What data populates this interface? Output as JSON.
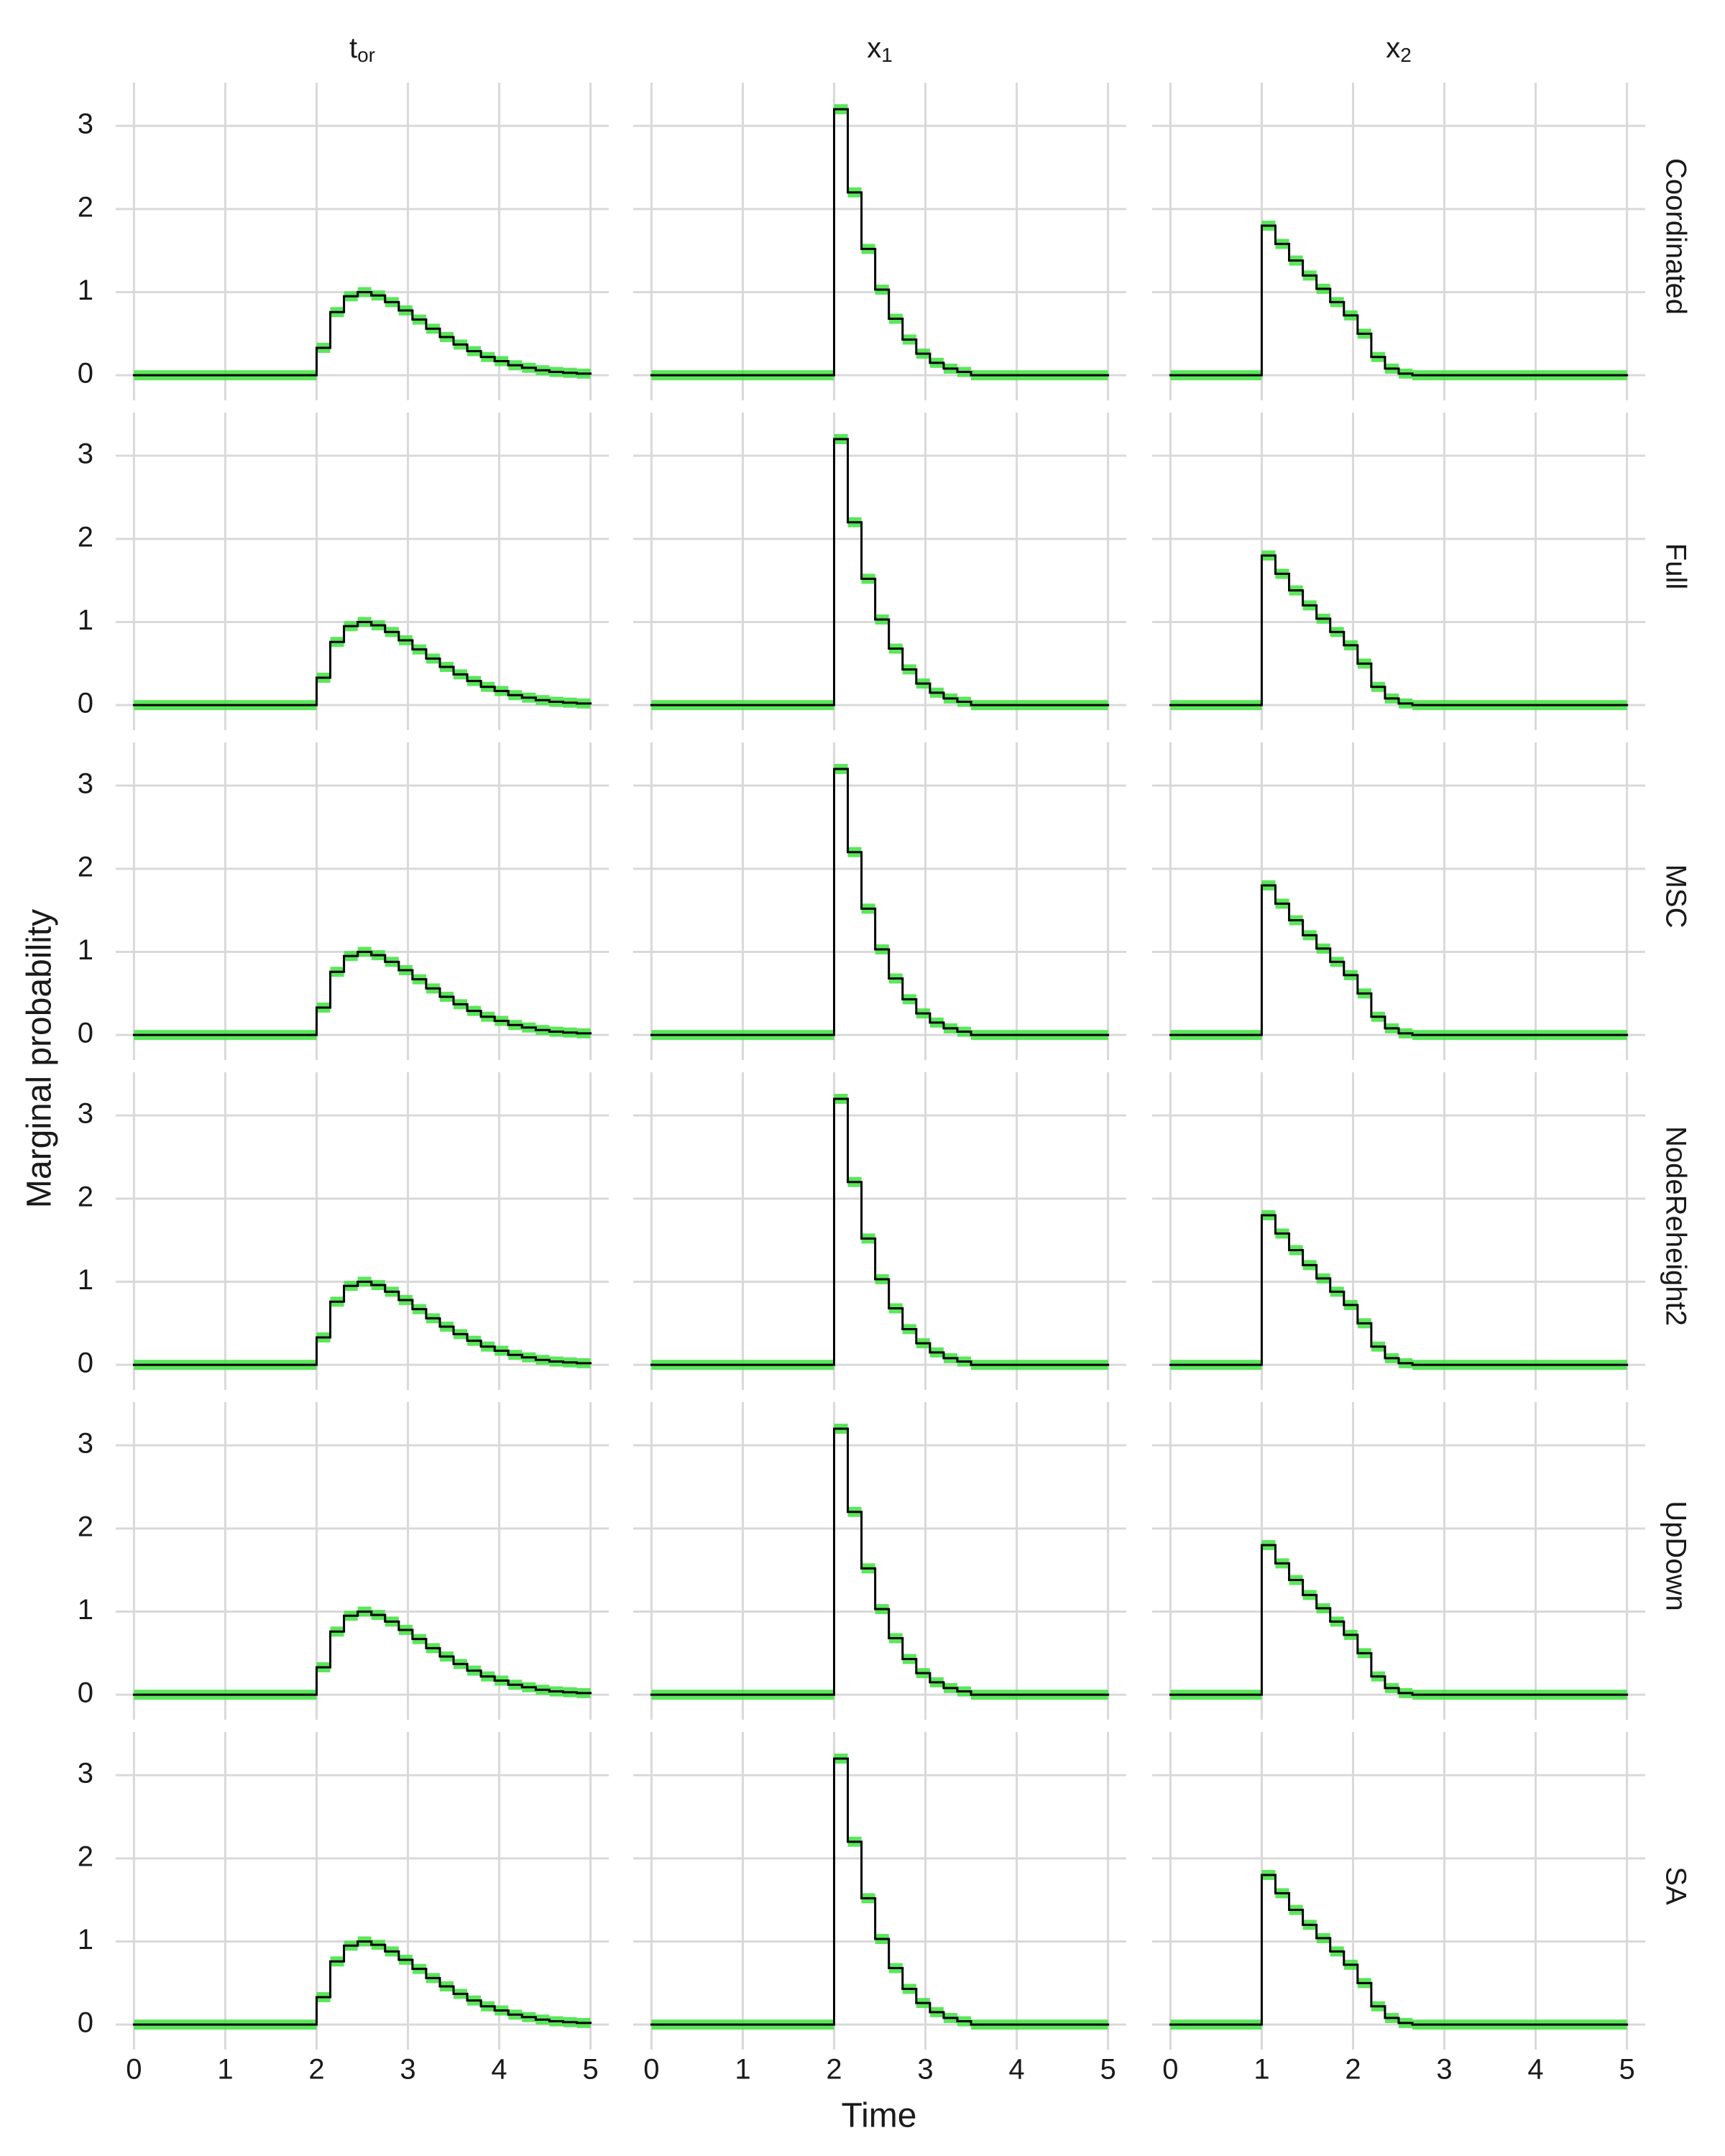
{
  "chart_data": {
    "type": "step",
    "x_label": "Time",
    "y_label": "Marginal probability",
    "columns": [
      {
        "title": "t",
        "subscript": "or",
        "bins": [
          0,
          2,
          2.15,
          2.3,
          2.45,
          2.6,
          2.75,
          2.9,
          3.05,
          3.2,
          3.35,
          3.5,
          3.65,
          3.8,
          3.95,
          4.1,
          4.25,
          4.4,
          4.55,
          4.7,
          4.85,
          5
        ]
      },
      {
        "title": "x",
        "subscript": "1",
        "bins": [
          0,
          2,
          2.15,
          2.3,
          2.45,
          2.6,
          2.75,
          2.9,
          3.05,
          3.2,
          3.35,
          3.5,
          5
        ]
      },
      {
        "title": "x",
        "subscript": "2",
        "bins": [
          0,
          1,
          1.15,
          1.3,
          1.45,
          1.6,
          1.75,
          1.9,
          2.05,
          2.2,
          2.35,
          2.5,
          2.65,
          5
        ]
      }
    ],
    "rows": [
      {
        "label": "Coordinated",
        "values": [
          [
            0,
            0.33,
            0.76,
            0.95,
            1.0,
            0.96,
            0.88,
            0.78,
            0.67,
            0.56,
            0.46,
            0.37,
            0.29,
            0.22,
            0.17,
            0.12,
            0.09,
            0.06,
            0.04,
            0.03,
            0.02
          ],
          [
            0,
            3.2,
            2.2,
            1.52,
            1.03,
            0.68,
            0.43,
            0.26,
            0.15,
            0.08,
            0.04,
            0
          ],
          [
            0,
            1.8,
            1.58,
            1.38,
            1.2,
            1.04,
            0.88,
            0.72,
            0.5,
            0.22,
            0.08,
            0.02,
            0
          ]
        ]
      },
      {
        "label": "Full",
        "values": [
          [
            0,
            0.33,
            0.76,
            0.95,
            1.0,
            0.96,
            0.88,
            0.78,
            0.67,
            0.56,
            0.46,
            0.37,
            0.29,
            0.22,
            0.17,
            0.12,
            0.09,
            0.06,
            0.04,
            0.03,
            0.02
          ],
          [
            0,
            3.2,
            2.2,
            1.52,
            1.03,
            0.68,
            0.43,
            0.26,
            0.15,
            0.08,
            0.04,
            0
          ],
          [
            0,
            1.8,
            1.58,
            1.38,
            1.2,
            1.04,
            0.88,
            0.72,
            0.5,
            0.22,
            0.08,
            0.02,
            0
          ]
        ]
      },
      {
        "label": "MSC",
        "values": [
          [
            0,
            0.33,
            0.76,
            0.95,
            1.0,
            0.96,
            0.88,
            0.78,
            0.67,
            0.56,
            0.46,
            0.37,
            0.29,
            0.22,
            0.17,
            0.12,
            0.09,
            0.06,
            0.04,
            0.03,
            0.02
          ],
          [
            0,
            3.2,
            2.2,
            1.52,
            1.03,
            0.68,
            0.43,
            0.26,
            0.15,
            0.08,
            0.04,
            0
          ],
          [
            0,
            1.8,
            1.58,
            1.38,
            1.2,
            1.04,
            0.88,
            0.72,
            0.5,
            0.22,
            0.08,
            0.02,
            0
          ]
        ]
      },
      {
        "label": "NodeReheight2",
        "values": [
          [
            0,
            0.33,
            0.76,
            0.95,
            1.0,
            0.96,
            0.88,
            0.78,
            0.67,
            0.56,
            0.46,
            0.37,
            0.29,
            0.22,
            0.17,
            0.12,
            0.09,
            0.06,
            0.04,
            0.03,
            0.02
          ],
          [
            0,
            3.2,
            2.2,
            1.52,
            1.03,
            0.68,
            0.43,
            0.26,
            0.15,
            0.08,
            0.04,
            0
          ],
          [
            0,
            1.8,
            1.58,
            1.38,
            1.2,
            1.04,
            0.88,
            0.72,
            0.5,
            0.22,
            0.08,
            0.02,
            0
          ]
        ]
      },
      {
        "label": "UpDown",
        "values": [
          [
            0,
            0.33,
            0.76,
            0.95,
            1.0,
            0.96,
            0.88,
            0.78,
            0.67,
            0.56,
            0.46,
            0.37,
            0.29,
            0.22,
            0.17,
            0.12,
            0.09,
            0.06,
            0.04,
            0.03,
            0.02
          ],
          [
            0,
            3.2,
            2.2,
            1.52,
            1.03,
            0.68,
            0.43,
            0.26,
            0.15,
            0.08,
            0.04,
            0
          ],
          [
            0,
            1.8,
            1.58,
            1.38,
            1.2,
            1.04,
            0.88,
            0.72,
            0.5,
            0.22,
            0.08,
            0.02,
            0
          ]
        ]
      },
      {
        "label": "SA",
        "values": [
          [
            0,
            0.33,
            0.76,
            0.95,
            1.0,
            0.96,
            0.88,
            0.78,
            0.67,
            0.56,
            0.46,
            0.37,
            0.29,
            0.22,
            0.17,
            0.12,
            0.09,
            0.06,
            0.04,
            0.03,
            0.02
          ],
          [
            0,
            3.2,
            2.2,
            1.52,
            1.03,
            0.68,
            0.43,
            0.26,
            0.15,
            0.08,
            0.04,
            0
          ],
          [
            0,
            1.8,
            1.58,
            1.38,
            1.2,
            1.04,
            0.88,
            0.72,
            0.5,
            0.22,
            0.08,
            0.02,
            0
          ]
        ]
      }
    ],
    "xlim": [
      -0.2,
      5.2
    ],
    "ylim": [
      -0.18,
      3.52
    ],
    "xticks": [
      0,
      1,
      2,
      3,
      4,
      5
    ],
    "yticks": [
      0,
      1,
      2,
      3
    ],
    "grid": true,
    "color": "#000000",
    "band_color": "#3ee23e"
  }
}
